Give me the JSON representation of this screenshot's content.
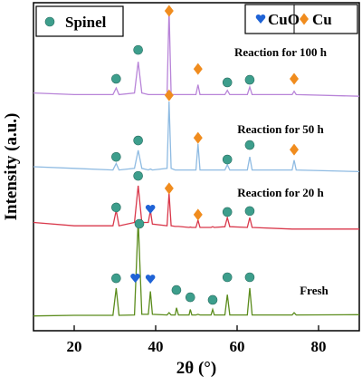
{
  "chart_data": {
    "type": "line",
    "xlabel": "2θ (°)",
    "ylabel": "Intensity (a.u.)",
    "xlim": [
      10,
      90
    ],
    "ylim": [
      0,
      100
    ],
    "xticks": [
      20,
      40,
      60,
      80
    ],
    "x": [
      10,
      20,
      29.5,
      30.3,
      31,
      34.8,
      35.7,
      36.6,
      38.2,
      38.7,
      39.2,
      42.8,
      43.3,
      43.8,
      44.8,
      45.1,
      45.6,
      48.2,
      48.5,
      48.9,
      49.9,
      50.4,
      50.9,
      53.6,
      54,
      54.4,
      57,
      57.6,
      58.2,
      62.5,
      63.1,
      63.7,
      73.5,
      74,
      74.5,
      90
    ],
    "series": [
      {
        "name": "Reaction for 100 h",
        "color": "#b884d8",
        "values": [
          72.5,
          72,
          72,
          74,
          72,
          72.5,
          82,
          72.5,
          72,
          72,
          72,
          72,
          98,
          72,
          72,
          72,
          72,
          72,
          72,
          72,
          72,
          75,
          72,
          72,
          72,
          72,
          72,
          73.3,
          72,
          72,
          74.3,
          72,
          72,
          73,
          72,
          71.5
        ]
      },
      {
        "name": "Reaction for 50 h",
        "color": "#8fbbe2",
        "values": [
          50,
          49.5,
          49,
          51,
          49,
          49.5,
          55,
          49.5,
          49,
          49.3,
          49,
          49.5,
          69.9,
          49.5,
          49,
          49,
          49,
          49,
          49,
          49,
          49,
          57,
          49,
          49,
          49,
          49,
          49,
          50.6,
          49,
          49,
          53,
          49,
          49,
          52,
          49,
          48.5
        ]
      },
      {
        "name": "Reaction for 20 h",
        "color": "#d9384b",
        "values": [
          33,
          32,
          32,
          36.7,
          32,
          33,
          44.2,
          33,
          33,
          36.7,
          32.5,
          32,
          42,
          32,
          31.8,
          31.8,
          31.8,
          31.5,
          31.6,
          31.5,
          31.5,
          33.7,
          31.5,
          31.5,
          31.7,
          31.5,
          31.7,
          34.5,
          31.7,
          31.5,
          34.5,
          31.5,
          31,
          31,
          31,
          31
        ]
      },
      {
        "name": "Fresh",
        "color": "#5b8c1c",
        "values": [
          4.5,
          4.7,
          4.7,
          13,
          4.7,
          4.8,
          33.7,
          5,
          5,
          12,
          5,
          4.8,
          5.5,
          4.8,
          4.8,
          7,
          4.8,
          4.8,
          6.5,
          4.8,
          4.8,
          5,
          4.8,
          4.8,
          6.5,
          4.8,
          4.8,
          11,
          4.8,
          4.8,
          13,
          4.8,
          4.8,
          5.5,
          4.8,
          4.9
        ]
      }
    ],
    "markers": [
      {
        "name": "Spinel",
        "color": "#3d9e8c",
        "shape": "circle",
        "x": [
          30.3,
          35.7,
          57.6,
          63.1,
          30.3,
          35.7,
          57.6,
          63.1,
          30.3,
          35.7,
          57.6,
          63.1,
          30.3,
          36,
          45.1,
          48.5,
          54,
          57.6,
          63.1
        ],
        "y": [
          76.8,
          85.6,
          75.7,
          76.5,
          53,
          58,
          52.2,
          56.6,
          37.6,
          47.2,
          36.2,
          36.5,
          16,
          32.6,
          12.4,
          10.2,
          9.4,
          16.3,
          16.3
        ]
      },
      {
        "name": "CuO",
        "color": "#1f63d6",
        "shape": "heart",
        "x": [
          38.7,
          35,
          38.7
        ],
        "y": [
          37,
          16,
          15.7
        ]
      },
      {
        "name": "Cu",
        "color": "#f08c1e",
        "shape": "diamond",
        "x": [
          43.3,
          50.4,
          74,
          43.3,
          50.4,
          74,
          43.3,
          50.4
        ],
        "y": [
          97.5,
          79.8,
          76.8,
          71.8,
          58.8,
          55.2,
          43.4,
          35.4
        ]
      }
    ]
  }
}
